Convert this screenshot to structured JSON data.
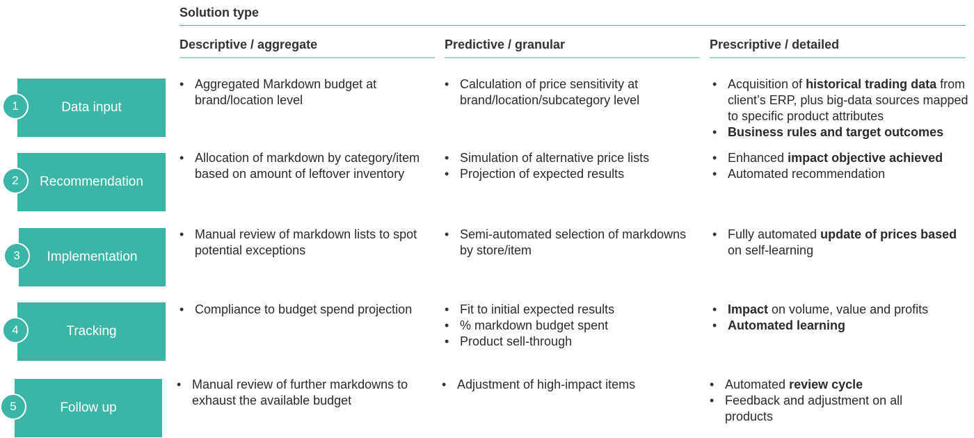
{
  "header": {
    "title": "Solution type"
  },
  "columns": [
    {
      "label": "Descriptive / aggregate"
    },
    {
      "label": "Predictive / granular"
    },
    {
      "label": "Prescriptive / detailed"
    }
  ],
  "rows": [
    {
      "number": "1",
      "stage": "Data input",
      "descriptive": [
        "Aggregated Markdown budget at brand/location level"
      ],
      "predictive": [
        "Calculation of price sensitivity at brand/location/subcategory level"
      ],
      "prescriptive": [
        {
          "pre": "Acquisition of ",
          "bold": "historical trading data",
          "post": " from client’s ERP, plus big-data sources mapped to specific product attributes"
        },
        {
          "pre": "",
          "bold": "Business rules and target outcomes",
          "post": ""
        }
      ]
    },
    {
      "number": "2",
      "stage": "Recommendation",
      "descriptive": [
        "Allocation of markdown by category/item based on amount of leftover inventory"
      ],
      "predictive": [
        "Simulation of alternative price lists",
        "Projection of expected results"
      ],
      "prescriptive": [
        {
          "pre": "Enhanced ",
          "bold": "impact objective achieved",
          "post": ""
        },
        {
          "pre": "Automated recommendation",
          "bold": "",
          "post": ""
        }
      ]
    },
    {
      "number": "3",
      "stage": "Implementation",
      "descriptive": [
        "Manual review of markdown lists to spot potential exceptions"
      ],
      "predictive": [
        "Semi-automated selection of markdowns by store/item"
      ],
      "prescriptive": [
        {
          "pre": "Fully automated ",
          "bold": "update of prices based",
          "post": " on self-learning"
        }
      ]
    },
    {
      "number": "4",
      "stage": "Tracking",
      "descriptive": [
        "Compliance to budget spend projection"
      ],
      "predictive": [
        "Fit to initial expected results",
        "% markdown budget spent",
        "Product sell-through"
      ],
      "prescriptive": [
        {
          "pre": "",
          "bold": "Impact",
          "post": " on volume, value and profits"
        },
        {
          "pre": "",
          "bold": "Automated learning",
          "post": ""
        }
      ]
    },
    {
      "number": "5",
      "stage": "Follow up",
      "descriptive": [
        "Manual review of further markdowns to exhaust the available budget"
      ],
      "predictive": [
        "Adjustment of high-impact items"
      ],
      "prescriptive": [
        {
          "pre": "Automated ",
          "bold": "review cycle",
          "post": ""
        },
        {
          "pre": "Feedback and adjustment on all products",
          "bold": "",
          "post": ""
        }
      ]
    }
  ]
}
